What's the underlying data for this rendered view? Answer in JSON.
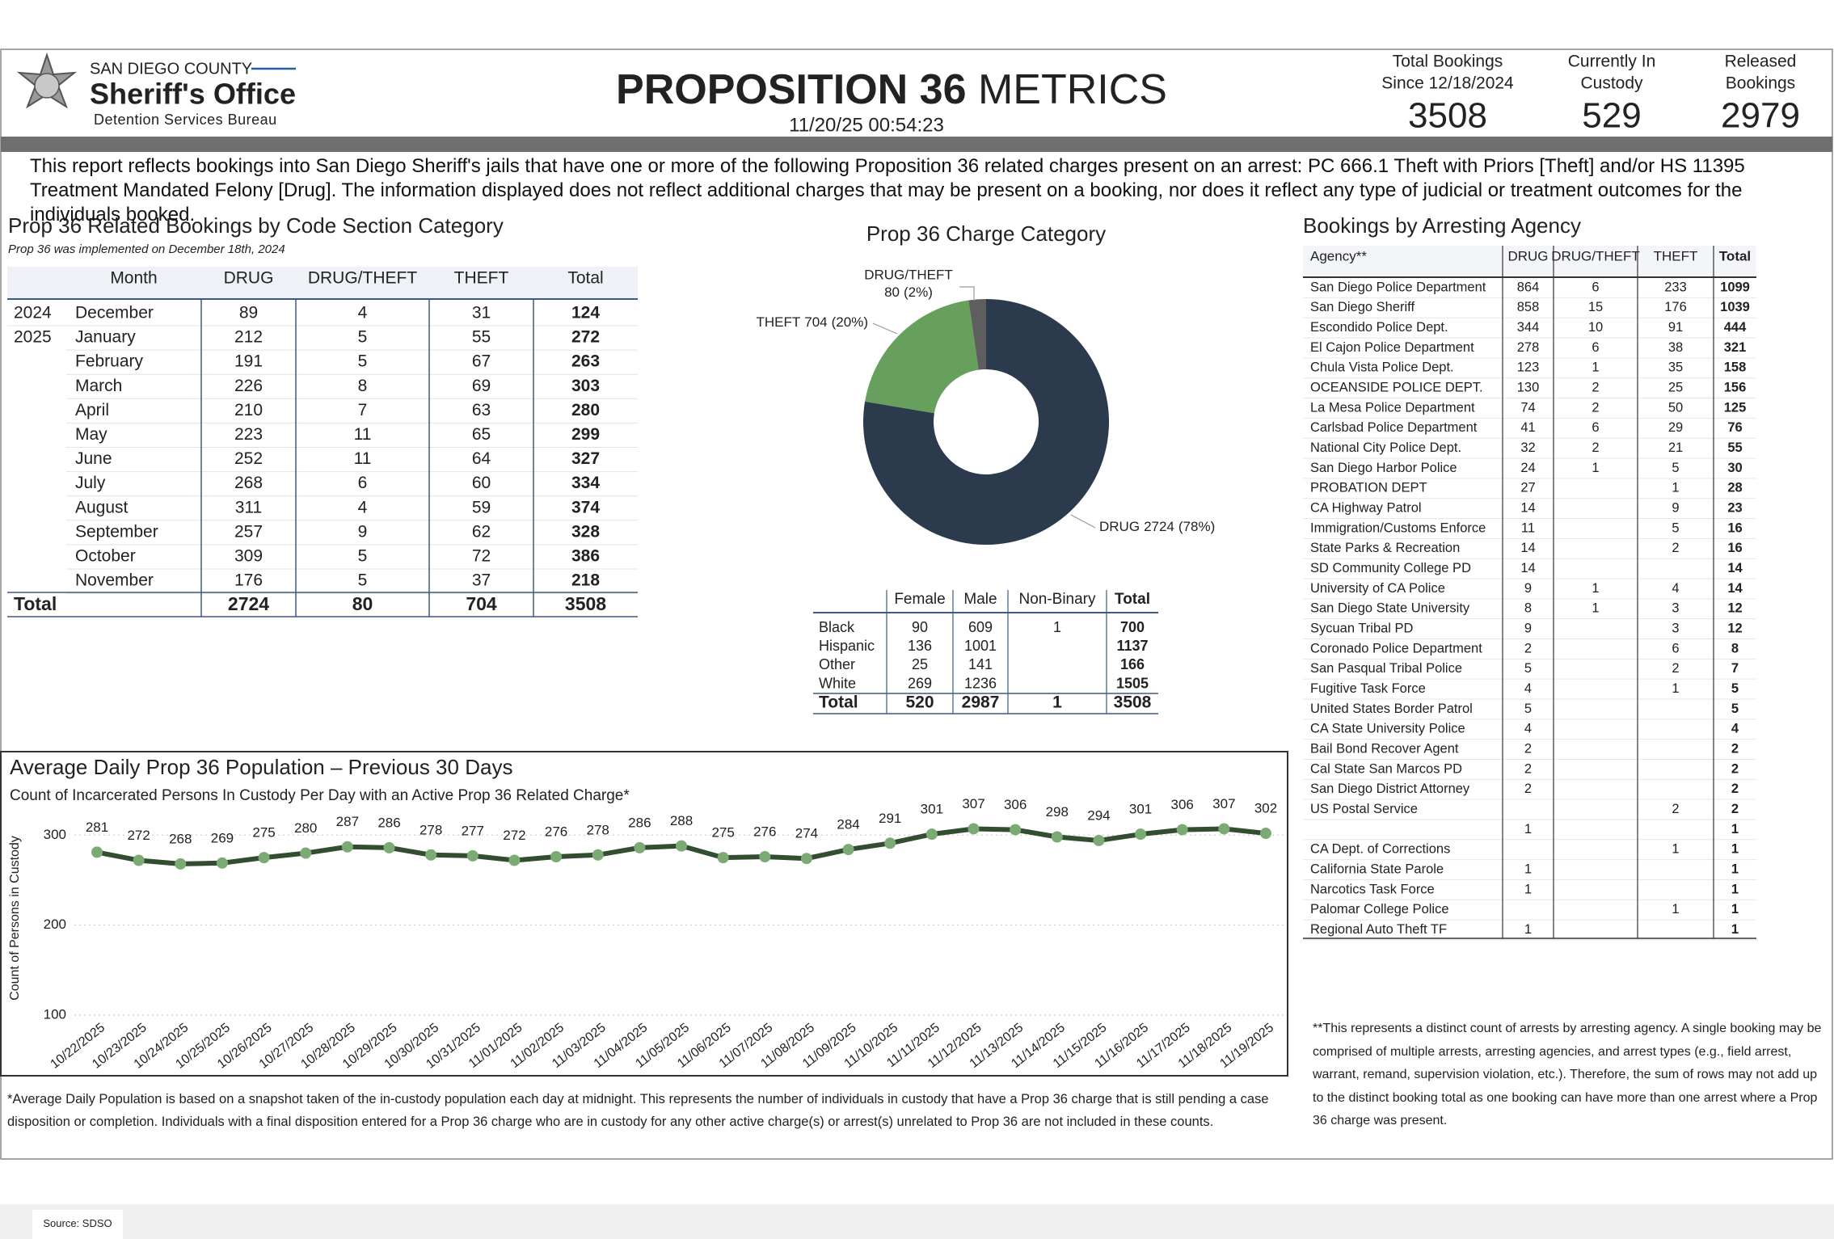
{
  "header": {
    "county": "SAN DIEGO COUNTY",
    "office": "Sheriff's Office",
    "bureau": "Detention Services Bureau",
    "title_bold": "PROPOSITION 36",
    "title_light": "METRICS",
    "timestamp": "11/20/25 00:54:23",
    "kpis": [
      {
        "label": [
          "Total Bookings",
          "Since 12/18/2024"
        ],
        "value": 3508
      },
      {
        "label": [
          "Currently In",
          "Custody"
        ],
        "value": 529
      },
      {
        "label": [
          "Released",
          "Bookings"
        ],
        "value": 2979
      }
    ]
  },
  "description": "This report reflects bookings into San Diego Sheriff's jails that have one or more of the following Proposition 36 related charges present on an arrest: PC 666.1 Theft with Priors [Theft] and/or HS 11395 Treatment Mandated Felony [Drug]. The information displayed does not reflect additional charges that may be present on a booking, nor does it reflect any type of judicial or treatment outcomes for the individuals booked.",
  "month_table": {
    "title": "Prop 36 Related Bookings by Code Section Category",
    "subtitle": "Prop 36 was implemented on December 18th, 2024",
    "columns": [
      "Month",
      "DRUG",
      "DRUG/THEFT",
      "THEFT",
      "Total"
    ],
    "rows": [
      [
        "2024",
        "December",
        89,
        4,
        31,
        124
      ],
      [
        "2025",
        "January",
        212,
        5,
        55,
        272
      ],
      [
        null,
        "February",
        191,
        5,
        67,
        263
      ],
      [
        null,
        "March",
        226,
        8,
        69,
        303
      ],
      [
        null,
        "April",
        210,
        7,
        63,
        280
      ],
      [
        null,
        "May",
        223,
        11,
        65,
        299
      ],
      [
        null,
        "June",
        252,
        11,
        64,
        327
      ],
      [
        null,
        "July",
        268,
        6,
        60,
        334
      ],
      [
        null,
        "August",
        311,
        4,
        59,
        374
      ],
      [
        null,
        "September",
        257,
        9,
        62,
        328
      ],
      [
        null,
        "October",
        309,
        5,
        72,
        386
      ],
      [
        null,
        "November",
        176,
        5,
        37,
        218
      ]
    ],
    "total": [
      "Total",
      2724,
      80,
      704,
      3508
    ]
  },
  "demographics_table": {
    "columns": [
      "Female",
      "Male",
      "Non-Binary",
      "Total"
    ],
    "rows": [
      [
        "Black",
        90,
        609,
        1,
        700
      ],
      [
        "Hispanic",
        136,
        1001,
        null,
        1137
      ],
      [
        "Other",
        25,
        141,
        null,
        166
      ],
      [
        "White",
        269,
        1236,
        null,
        1505
      ],
      [
        "Total",
        520,
        2987,
        1,
        3508
      ]
    ]
  },
  "agency_table": {
    "title": "Bookings by Arresting Agency",
    "columns": [
      "Agency**",
      "DRUG",
      "DRUG/THEFT",
      "THEFT",
      "Total"
    ],
    "rows": [
      [
        "San Diego Police Department",
        864,
        6,
        233,
        1099
      ],
      [
        "San Diego Sheriff",
        858,
        15,
        176,
        1039
      ],
      [
        "Escondido Police Dept.",
        344,
        10,
        91,
        444
      ],
      [
        "El Cajon Police Department",
        278,
        6,
        38,
        321
      ],
      [
        "Chula Vista Police Dept.",
        123,
        1,
        35,
        158
      ],
      [
        "OCEANSIDE POLICE DEPT.",
        130,
        2,
        25,
        156
      ],
      [
        "La Mesa Police Department",
        74,
        2,
        50,
        125
      ],
      [
        "Carlsbad Police Department",
        41,
        6,
        29,
        76
      ],
      [
        "National City Police Dept.",
        32,
        2,
        21,
        55
      ],
      [
        "San Diego Harbor Police",
        24,
        1,
        5,
        30
      ],
      [
        "PROBATION DEPT",
        27,
        null,
        1,
        28
      ],
      [
        "CA Highway Patrol",
        14,
        null,
        9,
        23
      ],
      [
        "Immigration/Customs Enforce",
        11,
        null,
        5,
        16
      ],
      [
        "State Parks & Recreation",
        14,
        null,
        2,
        16
      ],
      [
        "SD Community College PD",
        14,
        null,
        null,
        14
      ],
      [
        "University of CA Police",
        9,
        1,
        4,
        14
      ],
      [
        "San Diego State University",
        8,
        1,
        3,
        12
      ],
      [
        "Sycuan Tribal PD",
        9,
        null,
        3,
        12
      ],
      [
        "Coronado Police Department",
        2,
        null,
        6,
        8
      ],
      [
        "San Pasqual Tribal Police",
        5,
        null,
        2,
        7
      ],
      [
        "Fugitive Task Force",
        4,
        null,
        1,
        5
      ],
      [
        "United States Border Patrol",
        5,
        null,
        null,
        5
      ],
      [
        "CA State University Police",
        4,
        null,
        null,
        4
      ],
      [
        "Bail Bond Recover Agent",
        2,
        null,
        null,
        2
      ],
      [
        "Cal State San Marcos PD",
        2,
        null,
        null,
        2
      ],
      [
        "San Diego District Attorney",
        2,
        null,
        null,
        2
      ],
      [
        "US Postal Service",
        null,
        null,
        2,
        2
      ],
      [
        null,
        1,
        null,
        null,
        1
      ],
      [
        "CA Dept. of Corrections",
        null,
        null,
        1,
        1
      ],
      [
        "California State Parole",
        1,
        null,
        null,
        1
      ],
      [
        "Narcotics Task Force",
        1,
        null,
        null,
        1
      ],
      [
        "Palomar College Police",
        null,
        null,
        1,
        1
      ],
      [
        "Regional Auto Theft TF",
        1,
        null,
        null,
        1
      ]
    ],
    "footnote": "**This represents a distinct count of arrests by arresting agency. A single booking may be comprised of multiple arrests, arresting agencies, and arrest types (e.g., field arrest, warrant, remand, supervision violation, etc.). Therefore, the sum of rows may not add up to the distinct booking total as one booking can have more than one arrest where a Prop 36 charge was present."
  },
  "chart_data": [
    {
      "type": "donut",
      "title": "Prop 36 Charge Category",
      "categories": [
        "DRUG",
        "THEFT",
        "DRUG/THEFT"
      ],
      "values": [
        2724,
        704,
        80
      ],
      "percent_labels": [
        "(78%)",
        "(20%)",
        "(2%)"
      ],
      "colors": [
        "#2b3a4c",
        "#67a05c",
        "#5e5e5e"
      ]
    },
    {
      "type": "line",
      "title": "Average Daily Prop 36 Population – Previous 30 Days",
      "subtitle": "Count of Incarcerated Persons In Custody Per Day with an Active Prop 36 Related Charge*",
      "y_label": "Count of Persons in Custody",
      "categories": [
        "10/22/2025",
        "10/23/2025",
        "10/24/2025",
        "10/25/2025",
        "10/26/2025",
        "10/27/2025",
        "10/28/2025",
        "10/29/2025",
        "10/30/2025",
        "10/31/2025",
        "11/01/2025",
        "11/02/2025",
        "11/03/2025",
        "11/04/2025",
        "11/05/2025",
        "11/06/2025",
        "11/07/2025",
        "11/08/2025",
        "11/09/2025",
        "11/10/2025",
        "11/11/2025",
        "11/12/2025",
        "11/13/2025",
        "11/14/2025",
        "11/15/2025",
        "11/16/2025",
        "11/17/2025",
        "11/18/2025",
        "11/19/2025"
      ],
      "values": [
        281,
        272,
        268,
        269,
        275,
        280,
        287,
        286,
        278,
        277,
        272,
        276,
        278,
        286,
        288,
        275,
        276,
        274,
        284,
        291,
        301,
        307,
        306,
        298,
        294,
        301,
        306,
        307,
        302
      ],
      "color": "#324d2f",
      "marker_color": "#7caa74",
      "ylim": [
        100,
        320
      ],
      "yticks": [
        100,
        200,
        300
      ],
      "grid": true,
      "footnote": "*Average Daily Population is based on a snapshot taken of the in-custody population each day at midnight. This represents the number of individuals in custody that have a Prop 36 charge that is still pending a case disposition or completion. Individuals with a final disposition entered for a Prop 36 charge who are in custody for any other active charge(s) or arrest(s) unrelated to Prop 36 are not included in these counts."
    }
  ],
  "source_tab": "Source: SDSO"
}
